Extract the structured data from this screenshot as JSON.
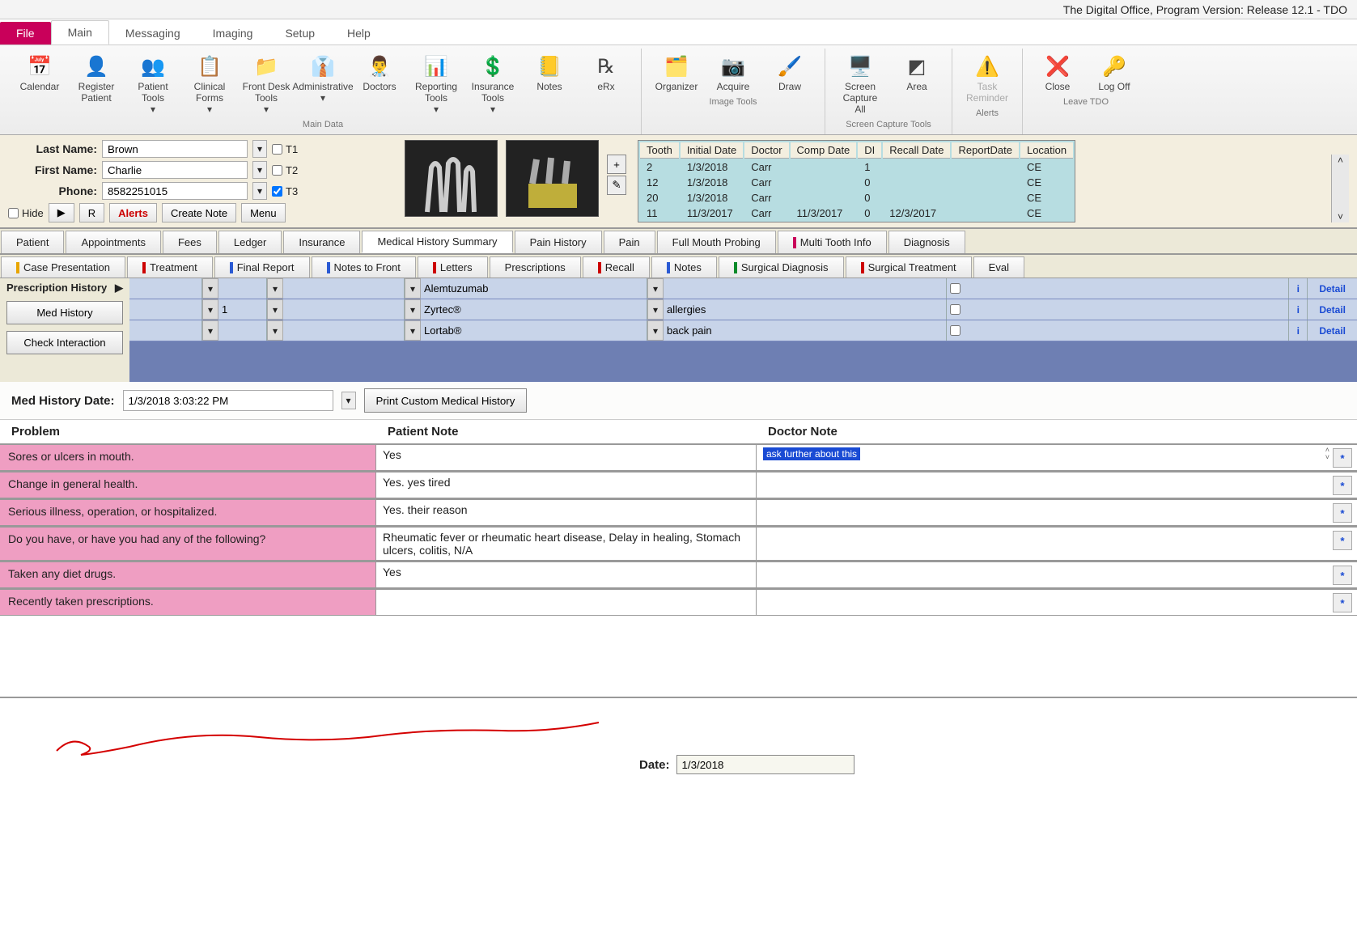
{
  "window_title": "The Digital Office, Program Version: Release 12.1 - TDO",
  "menu_tabs": {
    "file": "File",
    "main": "Main",
    "messaging": "Messaging",
    "imaging": "Imaging",
    "setup": "Setup",
    "help": "Help"
  },
  "ribbon_groups": [
    {
      "label": "Main Data",
      "items": [
        {
          "name": "calendar",
          "label": "Calendar",
          "icon": "📅"
        },
        {
          "name": "register-patient",
          "label": "Register Patient",
          "icon": "👤"
        },
        {
          "name": "patient-tools",
          "label": "Patient Tools ▾",
          "icon": "👥"
        },
        {
          "name": "clinical-forms",
          "label": "Clinical Forms ▾",
          "icon": "📋"
        },
        {
          "name": "front-desk-tools",
          "label": "Front Desk Tools ▾",
          "icon": "📁"
        },
        {
          "name": "administrative",
          "label": "Administrative ▾",
          "icon": "👔"
        },
        {
          "name": "doctors",
          "label": "Doctors",
          "icon": "👨‍⚕️"
        },
        {
          "name": "reporting-tools",
          "label": "Reporting Tools ▾",
          "icon": "📊"
        },
        {
          "name": "insurance-tools",
          "label": "Insurance Tools ▾",
          "icon": "💲"
        },
        {
          "name": "notes",
          "label": "Notes",
          "icon": "📒"
        },
        {
          "name": "erx",
          "label": "eRx",
          "icon": "℞"
        }
      ]
    },
    {
      "label": "Image Tools",
      "items": [
        {
          "name": "organizer",
          "label": "Organizer",
          "icon": "🗂️"
        },
        {
          "name": "acquire",
          "label": "Acquire",
          "icon": "📷"
        },
        {
          "name": "draw",
          "label": "Draw",
          "icon": "🖌️"
        }
      ]
    },
    {
      "label": "Screen Capture Tools",
      "items": [
        {
          "name": "screen-capture",
          "label": "Screen Capture - All",
          "icon": "🖥️"
        },
        {
          "name": "area",
          "label": "Area",
          "icon": "◩"
        }
      ]
    },
    {
      "label": "Alerts",
      "items": [
        {
          "name": "task-reminder",
          "label": "Task Reminder",
          "icon": "⚠️",
          "disabled": true
        }
      ]
    },
    {
      "label": "Leave TDO",
      "items": [
        {
          "name": "close",
          "label": "Close",
          "icon": "❌"
        },
        {
          "name": "log-off",
          "label": "Log Off",
          "icon": "🔑"
        }
      ]
    }
  ],
  "patient": {
    "last_label": "Last Name:",
    "last": "Brown",
    "first_label": "First Name:",
    "first": "Charlie",
    "phone_label": "Phone:",
    "phone": "8582251015",
    "t1": "T1",
    "t2": "T2",
    "t3": "T3",
    "t3_checked": true,
    "hide": "Hide",
    "play": "▶",
    "r": "R",
    "alerts": "Alerts",
    "create_note": "Create Note",
    "menu": "Menu"
  },
  "tooth_cols": {
    "tooth": "Tooth",
    "initial": "Initial Date",
    "doctor": "Doctor",
    "comp": "Comp Date",
    "di": "DI",
    "recall": "Recall Date",
    "report": "ReportDate",
    "location": "Location"
  },
  "tooth_rows": [
    {
      "tooth": "2",
      "initial": "1/3/2018",
      "doctor": "Carr",
      "comp": "",
      "di": "1",
      "recall": "",
      "report": "",
      "loc": "CE"
    },
    {
      "tooth": "12",
      "initial": "1/3/2018",
      "doctor": "Carr",
      "comp": "",
      "di": "0",
      "recall": "",
      "report": "",
      "loc": "CE"
    },
    {
      "tooth": "20",
      "initial": "1/3/2018",
      "doctor": "Carr",
      "comp": "",
      "di": "0",
      "recall": "",
      "report": "",
      "loc": "CE"
    },
    {
      "tooth": "11",
      "initial": "11/3/2017",
      "doctor": "Carr",
      "comp": "11/3/2017",
      "di": "0",
      "recall": "12/3/2017",
      "report": "",
      "loc": "CE"
    }
  ],
  "subtabs1": [
    {
      "label": "Patient"
    },
    {
      "label": "Appointments"
    },
    {
      "label": "Fees"
    },
    {
      "label": "Ledger"
    },
    {
      "label": "Insurance"
    },
    {
      "label": "Medical History Summary",
      "active": true
    },
    {
      "label": "Pain History"
    },
    {
      "label": "Pain"
    },
    {
      "label": "Full Mouth Probing"
    },
    {
      "label": "Multi Tooth Info",
      "marker": "#c9005a"
    },
    {
      "label": "Diagnosis"
    }
  ],
  "subtabs2": [
    {
      "label": "Case Presentation",
      "marker": "#e8a500"
    },
    {
      "label": "Treatment",
      "marker": "#c00"
    },
    {
      "label": "Final Report",
      "marker": "#2a5ad4"
    },
    {
      "label": "Notes to Front",
      "marker": "#2a5ad4"
    },
    {
      "label": "Letters",
      "marker": "#c00"
    },
    {
      "label": "Prescriptions"
    },
    {
      "label": "Recall",
      "marker": "#c00"
    },
    {
      "label": "Notes",
      "marker": "#2a5ad4"
    },
    {
      "label": "Surgical Diagnosis",
      "marker": "#0a8a2a"
    },
    {
      "label": "Surgical Treatment",
      "marker": "#c00"
    },
    {
      "label": "Eval"
    }
  ],
  "rx": {
    "side_label": "Prescription History",
    "med_history_btn": "Med History",
    "check_btn": "Check Interaction",
    "rows": [
      {
        "qty": "",
        "drug": "Alemtuzumab",
        "reason": ""
      },
      {
        "qty": "1",
        "drug": "Zyrtec®",
        "reason": "allergies"
      },
      {
        "qty": "",
        "drug": "Lortab®",
        "reason": "back pain"
      }
    ],
    "detail": "Detail",
    "i": "i"
  },
  "mh": {
    "label": "Med History Date:",
    "date": "1/3/2018 3:03:22 PM",
    "print": "Print Custom Medical History"
  },
  "prob_head": {
    "c1": "Problem",
    "c2": "Patient Note",
    "c3": "Doctor Note"
  },
  "problems": [
    {
      "label": "Sores or ulcers in mouth.",
      "pn": "Yes",
      "dn": "ask further about this",
      "dn_hl": true,
      "spin": true
    },
    {
      "label": "Change in general health.",
      "pn": "Yes. yes tired",
      "dn": ""
    },
    {
      "label": "Serious illness, operation, or hospitalized.",
      "pn": "Yes. their reason",
      "dn": ""
    },
    {
      "label": "Do you have, or have you had any of the following?",
      "pn": "Rheumatic fever or rheumatic heart disease, Delay in healing, Stomach ulcers, colitis, N/A",
      "dn": ""
    },
    {
      "label": "Taken any diet drugs.",
      "pn": "Yes",
      "dn": ""
    },
    {
      "label": "Recently taken prescriptions.",
      "pn": "",
      "dn": ""
    }
  ],
  "sig": {
    "date_label": "Date:",
    "date": "1/3/2018"
  },
  "colors": {
    "pink": "#ef9ec2",
    "file": "#c9005a",
    "rx_bg": "#6e7fb3",
    "rx_cell": "#c8d4e9",
    "tooth_bg": "#b7dde1",
    "header_bg": "#f3eedf",
    "link": "#1a4bd4"
  }
}
